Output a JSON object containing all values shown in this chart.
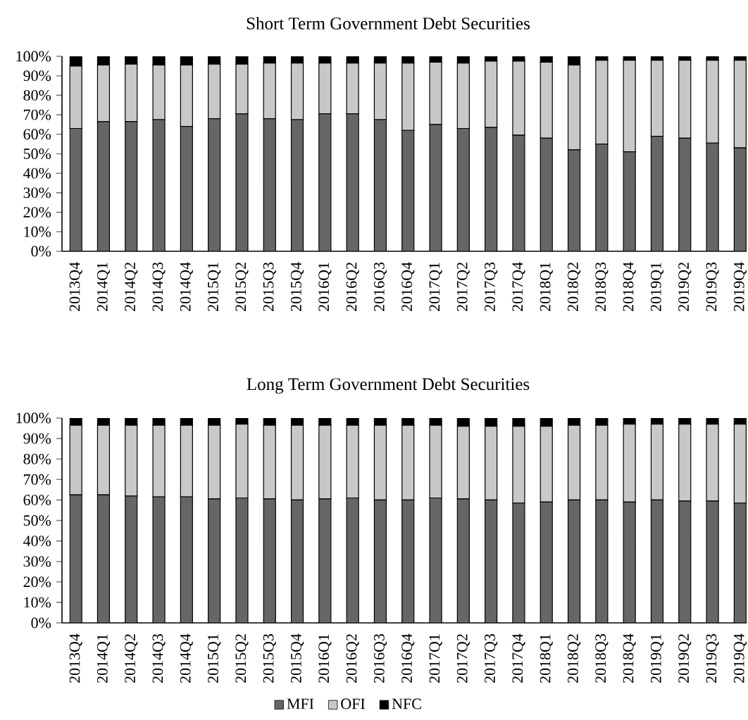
{
  "chart_data": [
    {
      "type": "bar",
      "title": "Short Term Government Debt Securities",
      "stacked": true,
      "legend": false,
      "categories": [
        "2013Q4",
        "2014Q1",
        "2014Q2",
        "2014Q3",
        "2014Q4",
        "2015Q1",
        "2015Q2",
        "2015Q3",
        "2015Q4",
        "2016Q1",
        "2016Q2",
        "2016Q3",
        "2016Q4",
        "2017Q1",
        "2017Q2",
        "2017Q3",
        "2017Q4",
        "2018Q1",
        "2018Q2",
        "2018Q3",
        "2018Q4",
        "2019Q1",
        "2019Q2",
        "2019Q3",
        "2019Q4"
      ],
      "ylim": [
        0,
        100
      ],
      "yticks": [
        {
          "value": 0,
          "label": "0%"
        },
        {
          "value": 10,
          "label": "10%"
        },
        {
          "value": 20,
          "label": "20%"
        },
        {
          "value": 30,
          "label": "30%"
        },
        {
          "value": 40,
          "label": "40%"
        },
        {
          "value": 50,
          "label": "50%"
        },
        {
          "value": 60,
          "label": "60%"
        },
        {
          "value": 70,
          "label": "70%"
        },
        {
          "value": 80,
          "label": "80%"
        },
        {
          "value": 90,
          "label": "90%"
        },
        {
          "value": 100,
          "label": "100%"
        }
      ],
      "series": [
        {
          "color": "#666666",
          "values": [
            63.0,
            66.5,
            66.5,
            67.5,
            64.0,
            68.0,
            70.5,
            68.0,
            67.5,
            70.5,
            70.5,
            67.5,
            62.0,
            65.0,
            63.0,
            63.5,
            59.5,
            58.0,
            52.0,
            55.0,
            51.0,
            59.0,
            58.0,
            55.5,
            53.0
          ]
        },
        {
          "color": "#c8c8c8",
          "values": [
            32.0,
            29.0,
            29.5,
            28.0,
            31.5,
            28.0,
            25.5,
            28.5,
            29.0,
            26.0,
            26.0,
            29.0,
            34.5,
            32.0,
            33.5,
            34.0,
            38.0,
            39.0,
            43.5,
            43.0,
            47.0,
            39.0,
            40.0,
            42.5,
            45.0
          ]
        },
        {
          "color": "#000000",
          "values": [
            5.0,
            4.5,
            4.0,
            4.5,
            4.5,
            4.0,
            4.0,
            3.5,
            3.5,
            3.5,
            3.5,
            3.5,
            3.5,
            3.0,
            3.5,
            2.5,
            2.5,
            3.0,
            4.5,
            2.0,
            2.0,
            2.0,
            2.0,
            2.0,
            2.0
          ]
        }
      ]
    },
    {
      "type": "bar",
      "title": "Long Term Government Debt Securities",
      "stacked": true,
      "legend": "bottom",
      "categories": [
        "2013Q4",
        "2014Q1",
        "2014Q2",
        "2014Q3",
        "2014Q4",
        "2015Q1",
        "2015Q2",
        "2015Q3",
        "2015Q4",
        "2016Q1",
        "2016Q2",
        "2016Q3",
        "2016Q4",
        "2017Q1",
        "2017Q2",
        "2017Q3",
        "2017Q4",
        "2018Q1",
        "2018Q2",
        "2018Q3",
        "2018Q4",
        "2019Q1",
        "2019Q2",
        "2019Q3",
        "2019Q4"
      ],
      "ylim": [
        0,
        100
      ],
      "yticks": [
        {
          "value": 0,
          "label": "0%"
        },
        {
          "value": 10,
          "label": "10%"
        },
        {
          "value": 20,
          "label": "20%"
        },
        {
          "value": 30,
          "label": "30%"
        },
        {
          "value": 40,
          "label": "40%"
        },
        {
          "value": 50,
          "label": "50%"
        },
        {
          "value": 60,
          "label": "60%"
        },
        {
          "value": 70,
          "label": "70%"
        },
        {
          "value": 80,
          "label": "80%"
        },
        {
          "value": 90,
          "label": "90%"
        },
        {
          "value": 100,
          "label": "100%"
        }
      ],
      "series": [
        {
          "name": "MFI",
          "color": "#666666",
          "values": [
            62.5,
            62.5,
            62.0,
            61.5,
            61.5,
            60.5,
            61.0,
            60.5,
            60.0,
            60.5,
            61.0,
            60.0,
            60.0,
            61.0,
            60.5,
            60.0,
            58.5,
            59.0,
            60.0,
            60.0,
            59.0,
            60.0,
            59.5,
            59.5,
            58.5
          ]
        },
        {
          "name": "OFI",
          "color": "#c8c8c8",
          "values": [
            34.0,
            34.0,
            34.5,
            35.0,
            35.0,
            36.0,
            36.0,
            36.0,
            36.5,
            36.0,
            35.5,
            36.5,
            36.5,
            35.5,
            35.5,
            36.0,
            37.5,
            37.0,
            36.5,
            36.5,
            38.0,
            37.0,
            37.5,
            37.5,
            38.5
          ]
        },
        {
          "name": "NFC",
          "color": "#000000",
          "values": [
            3.5,
            3.5,
            3.5,
            3.5,
            3.5,
            3.5,
            3.0,
            3.5,
            3.5,
            3.5,
            3.5,
            3.5,
            3.5,
            3.5,
            4.0,
            4.0,
            4.0,
            4.0,
            3.5,
            3.5,
            3.0,
            3.0,
            3.0,
            3.0,
            3.0
          ]
        }
      ]
    }
  ]
}
